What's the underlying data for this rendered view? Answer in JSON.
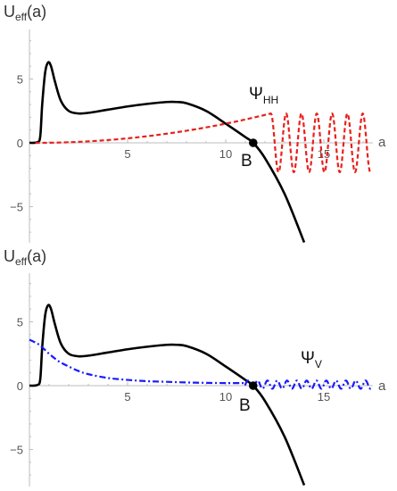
{
  "chart_data": [
    {
      "type": "line",
      "ylabel": "U",
      "ylabel_sub": "eff",
      "ylabel_suffix": "(a)",
      "xlabel": "a",
      "xlim": [
        0,
        17.8
      ],
      "ylim": [
        -8.0,
        9.0
      ],
      "x_ticks": [
        5,
        10,
        15
      ],
      "x_tick_labels": [
        "5",
        "10",
        "15"
      ],
      "y_ticks": [
        5,
        0,
        -5
      ],
      "y_tick_labels": [
        "5",
        "0",
        "−5"
      ],
      "point": {
        "label": "B",
        "x": 11.4,
        "y": 0
      },
      "annotation": {
        "text": "Ψ",
        "sub": "HH",
        "x": 11.2,
        "y": 3.9
      },
      "series": [
        {
          "name": "U_eff",
          "color": "#000000",
          "style": "solid",
          "x": [
            0,
            0.4,
            0.55,
            0.65,
            0.8,
            0.95,
            1.1,
            1.3,
            1.6,
            2.0,
            2.5,
            3.0,
            4.0,
            5.0,
            6.0,
            7.0,
            7.5,
            8.0,
            9.0,
            10.0,
            11.0,
            11.4,
            12.0,
            13.0,
            14.0
          ],
          "y": [
            0,
            0.05,
            0.5,
            3.0,
            5.5,
            6.3,
            6.0,
            4.8,
            3.3,
            2.5,
            2.3,
            2.35,
            2.6,
            2.85,
            3.05,
            3.2,
            3.2,
            3.1,
            2.5,
            1.5,
            0.45,
            0,
            -1.2,
            -4.0,
            -7.8
          ]
        },
        {
          "name": "Ψ_HH",
          "color": "#e8201c",
          "style": "dashed",
          "curve": "oscillating",
          "rise_x": [
            0.3,
            12.3
          ],
          "rise_y": [
            0,
            2.3
          ],
          "osc_x": [
            12.3,
            17.4
          ],
          "amplitude": 2.3,
          "period": 0.78
        }
      ]
    },
    {
      "type": "line",
      "ylabel": "U",
      "ylabel_sub": "eff",
      "ylabel_suffix": "(a)",
      "xlabel": "a",
      "xlim": [
        0,
        17.8
      ],
      "ylim": [
        -8.0,
        9.0
      ],
      "x_ticks": [
        5,
        10,
        15
      ],
      "x_tick_labels": [
        "5",
        "10",
        "15"
      ],
      "y_ticks": [
        5,
        0,
        -5
      ],
      "y_tick_labels": [
        "5",
        "0",
        "−5"
      ],
      "point": {
        "label": "B",
        "x": 11.4,
        "y": 0
      },
      "annotation": {
        "text": "Ψ",
        "sub": "V",
        "x": 13.6,
        "y": 2.2
      },
      "series": [
        {
          "name": "U_eff",
          "color": "#000000",
          "style": "solid",
          "x": [
            0,
            0.4,
            0.55,
            0.65,
            0.8,
            0.95,
            1.1,
            1.3,
            1.6,
            2.0,
            2.5,
            3.0,
            4.0,
            5.0,
            6.0,
            7.0,
            7.5,
            8.0,
            9.0,
            10.0,
            11.0,
            11.4,
            12.0,
            13.0,
            14.0
          ],
          "y": [
            0,
            0.05,
            0.5,
            3.0,
            5.5,
            6.3,
            6.0,
            4.8,
            3.3,
            2.5,
            2.3,
            2.35,
            2.6,
            2.85,
            3.05,
            3.2,
            3.2,
            3.1,
            2.5,
            1.5,
            0.45,
            0,
            -1.2,
            -4.0,
            -7.8
          ]
        },
        {
          "name": "Ψ_V",
          "color": "#1a1aff",
          "style": "dashdot",
          "curve": "decaying",
          "x": [
            0,
            0.5,
            1.0,
            1.5,
            2.0,
            2.5,
            3.0,
            4.0,
            5.0,
            6.0,
            7.0,
            8.0,
            9.0,
            10.0,
            11.0
          ],
          "y": [
            3.6,
            3.2,
            2.5,
            1.9,
            1.5,
            1.15,
            0.9,
            0.6,
            0.45,
            0.35,
            0.3,
            0.25,
            0.22,
            0.2,
            0.2
          ],
          "osc_x": [
            11.0,
            17.4
          ],
          "amplitude": 0.32,
          "period": 0.5
        }
      ]
    }
  ]
}
